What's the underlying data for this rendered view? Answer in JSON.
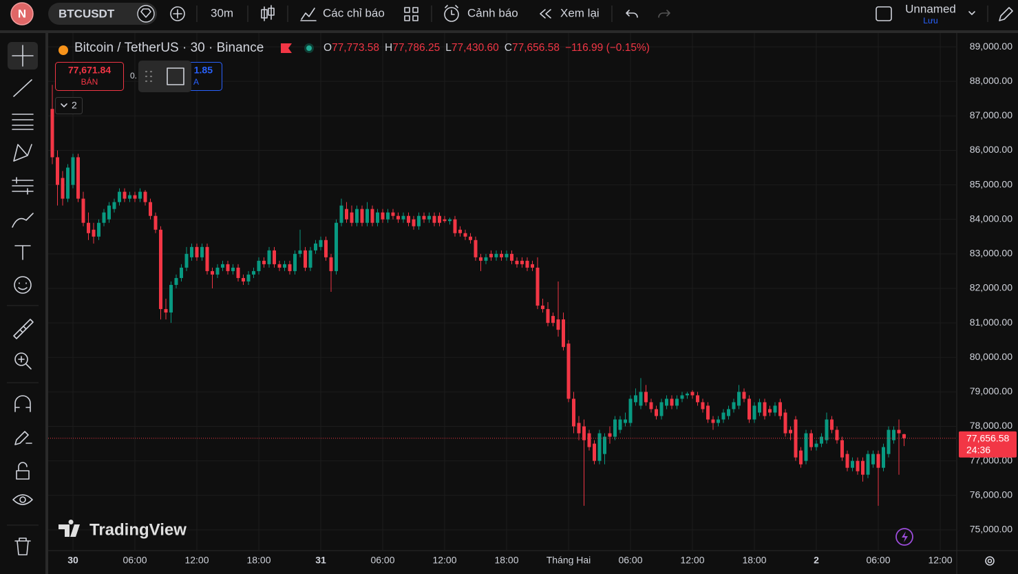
{
  "toolbar": {
    "avatar": "N",
    "symbol": "BTCUSDT",
    "interval": "30m",
    "indicators": "Các chỉ báo",
    "alerts": "Cảnh báo",
    "replay": "Xem lại",
    "layout_name": "Unnamed",
    "save": "Lưu"
  },
  "legend": {
    "title": "Bitcoin / TetherUS · 30 · Binance",
    "ohlc": [
      {
        "key": "O",
        "value": "77,773.58"
      },
      {
        "key": "H",
        "value": "77,786.25"
      },
      {
        "key": "L",
        "value": "77,430.60"
      },
      {
        "key": "C",
        "value": "77,656.58"
      }
    ],
    "change": "−116.99 (−0.15%)"
  },
  "trade": {
    "sell_price": "77,671.84",
    "sell_label": "BÁN",
    "spread": "0.",
    "buy_price": "1.85",
    "buy_label": "A",
    "indicators_badge": "2"
  },
  "watermark": "TradingView",
  "chart_data": {
    "type": "candlestick",
    "up_color": "#089981",
    "down_color": "#f23645",
    "grid": true,
    "ylim": [
      74400,
      89400
    ],
    "yticks": [
      {
        "value": 75000,
        "label": "75,000.00"
      },
      {
        "value": 76000,
        "label": "76,000.00"
      },
      {
        "value": 77000,
        "label": "77,000.00"
      },
      {
        "value": 78000,
        "label": "78,000.00"
      },
      {
        "value": 79000,
        "label": "79,000.00"
      },
      {
        "value": 80000,
        "label": "80,000.00"
      },
      {
        "value": 81000,
        "label": "81,000.00"
      },
      {
        "value": 82000,
        "label": "82,000.00"
      },
      {
        "value": 83000,
        "label": "83,000.00"
      },
      {
        "value": 84000,
        "label": "84,000.00"
      },
      {
        "value": 85000,
        "label": "85,000.00"
      },
      {
        "value": 86000,
        "label": "86,000.00"
      },
      {
        "value": 87000,
        "label": "87,000.00"
      },
      {
        "value": 88000,
        "label": "88,000.00"
      },
      {
        "value": 89000,
        "label": "89,000.00"
      }
    ],
    "last_price": {
      "value": 77656.58,
      "label": "77,656.58"
    },
    "countdown": "24:36",
    "categories": [
      null,
      null,
      null,
      null,
      "30",
      null,
      null,
      null,
      null,
      null,
      null,
      null,
      null,
      null,
      null,
      null,
      "06:00",
      null,
      null,
      null,
      null,
      null,
      null,
      null,
      null,
      null,
      null,
      null,
      "12:00",
      null,
      null,
      null,
      null,
      null,
      null,
      null,
      null,
      null,
      null,
      null,
      "18:00",
      null,
      null,
      null,
      null,
      null,
      null,
      null,
      null,
      null,
      null,
      null,
      "31",
      null,
      null,
      null,
      null,
      null,
      null,
      null,
      null,
      null,
      null,
      null,
      "06:00",
      null,
      null,
      null,
      null,
      null,
      null,
      null,
      null,
      null,
      null,
      null,
      "12:00",
      null,
      null,
      null,
      null,
      null,
      null,
      null,
      null,
      null,
      null,
      null,
      "18:00",
      null,
      null,
      null,
      null,
      null,
      null,
      null,
      null,
      null,
      null,
      null,
      "Tháng Hai",
      null,
      null,
      null,
      null,
      null,
      null,
      null,
      null,
      null,
      null,
      null,
      "06:00",
      null,
      null,
      null,
      null,
      null,
      null,
      null,
      null,
      null,
      null,
      null,
      "12:00",
      null,
      null,
      null,
      null,
      null,
      null,
      null,
      null,
      null,
      null,
      null,
      "18:00",
      null,
      null,
      null,
      null,
      null,
      null,
      null,
      null,
      null,
      null,
      null,
      "2",
      null,
      null,
      null,
      null,
      null,
      null,
      null,
      null,
      null,
      null,
      null,
      "06:00",
      null,
      null,
      null,
      null,
      null,
      null,
      null,
      null,
      null,
      null,
      null,
      "12:00",
      null
    ],
    "ohlc": [
      [
        87200,
        87900,
        85600,
        85800
      ],
      [
        85800,
        86000,
        84400,
        85000
      ],
      [
        85200,
        85400,
        84400,
        84600
      ],
      [
        84600,
        85600,
        84500,
        85500
      ],
      [
        85000,
        85900,
        84900,
        85800
      ],
      [
        85800,
        85900,
        84500,
        84600
      ],
      [
        84600,
        84800,
        83800,
        83900
      ],
      [
        83900,
        84200,
        83400,
        83600
      ],
      [
        83700,
        83900,
        83300,
        83500
      ],
      [
        83500,
        84000,
        83400,
        83900
      ],
      [
        83900,
        84300,
        83800,
        84200
      ],
      [
        84000,
        84500,
        83900,
        84400
      ],
      [
        84300,
        84600,
        84200,
        84500
      ],
      [
        84500,
        84900,
        84400,
        84800
      ],
      [
        84800,
        84900,
        84500,
        84600
      ],
      [
        84600,
        84800,
        84500,
        84700
      ],
      [
        84700,
        84800,
        84500,
        84600
      ],
      [
        84600,
        84900,
        84500,
        84800
      ],
      [
        84800,
        84850,
        84400,
        84500
      ],
      [
        84500,
        84600,
        84000,
        84100
      ],
      [
        84100,
        84200,
        83600,
        83700
      ],
      [
        83700,
        83800,
        81100,
        81400
      ],
      [
        81400,
        81700,
        81100,
        81300
      ],
      [
        81300,
        82200,
        81000,
        82100
      ],
      [
        82100,
        82400,
        82000,
        82300
      ],
      [
        82300,
        82700,
        82200,
        82600
      ],
      [
        82600,
        83200,
        82500,
        83000
      ],
      [
        82900,
        83300,
        82800,
        83200
      ],
      [
        83200,
        83300,
        82800,
        82900
      ],
      [
        82900,
        83300,
        82800,
        83200
      ],
      [
        83200,
        83300,
        82400,
        82500
      ],
      [
        82500,
        82600,
        82000,
        82400
      ],
      [
        82400,
        82700,
        82300,
        82600
      ],
      [
        82600,
        82800,
        82500,
        82700
      ],
      [
        82700,
        82800,
        82400,
        82500
      ],
      [
        82500,
        82700,
        82400,
        82600
      ],
      [
        82600,
        82700,
        82200,
        82300
      ],
      [
        82300,
        82400,
        82100,
        82200
      ],
      [
        82200,
        82500,
        82100,
        82400
      ],
      [
        82400,
        82600,
        82300,
        82500
      ],
      [
        82500,
        82900,
        82400,
        82800
      ],
      [
        82800,
        82900,
        82600,
        82700
      ],
      [
        82700,
        83200,
        82600,
        83100
      ],
      [
        83100,
        83200,
        82600,
        82700
      ],
      [
        82700,
        82800,
        82500,
        82600
      ],
      [
        82600,
        82800,
        82500,
        82700
      ],
      [
        82700,
        82800,
        82400,
        82500
      ],
      [
        82500,
        83100,
        82400,
        83000
      ],
      [
        83000,
        83700,
        82900,
        83100
      ],
      [
        83100,
        83200,
        82500,
        82600
      ],
      [
        82600,
        83200,
        82500,
        83100
      ],
      [
        83100,
        83400,
        83000,
        83300
      ],
      [
        83200,
        83500,
        83100,
        83400
      ],
      [
        83400,
        83500,
        82800,
        82900
      ],
      [
        82900,
        83000,
        81900,
        82500
      ],
      [
        82500,
        84000,
        82400,
        83900
      ],
      [
        83900,
        84600,
        83800,
        84400
      ],
      [
        84300,
        84500,
        83900,
        84000
      ],
      [
        84200,
        84400,
        83800,
        83900
      ],
      [
        83900,
        84400,
        83800,
        84300
      ],
      [
        84300,
        84400,
        83800,
        83900
      ],
      [
        83900,
        84500,
        83800,
        84300
      ],
      [
        84300,
        84400,
        83800,
        83900
      ],
      [
        83900,
        84300,
        83800,
        84200
      ],
      [
        84200,
        84300,
        83900,
        84000
      ],
      [
        84000,
        84300,
        83900,
        84200
      ],
      [
        84200,
        84300,
        84000,
        84100
      ],
      [
        84100,
        84200,
        83900,
        84000
      ],
      [
        84000,
        84200,
        83900,
        84100
      ],
      [
        84100,
        84200,
        83800,
        83900
      ],
      [
        84000,
        84100,
        83700,
        83800
      ],
      [
        83800,
        84200,
        83700,
        84100
      ],
      [
        84100,
        84200,
        83900,
        84000
      ],
      [
        84000,
        84200,
        83900,
        84100
      ],
      [
        84100,
        84200,
        83800,
        83900
      ],
      [
        84100,
        84200,
        83800,
        83900
      ],
      [
        84000,
        84100,
        83900,
        83950
      ],
      [
        83950,
        84050,
        83850,
        84000
      ],
      [
        84000,
        84100,
        83500,
        83600
      ],
      [
        83700,
        83800,
        83500,
        83600
      ],
      [
        83600,
        83700,
        83400,
        83500
      ],
      [
        83500,
        83600,
        83300,
        83400
      ],
      [
        83400,
        83500,
        82800,
        82900
      ],
      [
        82900,
        83000,
        82500,
        82800
      ],
      [
        82800,
        83000,
        82700,
        82900
      ],
      [
        83000,
        83100,
        82800,
        82900
      ],
      [
        82900,
        83100,
        82800,
        83000
      ],
      [
        83000,
        83100,
        82800,
        82900
      ],
      [
        82900,
        83100,
        82800,
        83000
      ],
      [
        83000,
        83100,
        82700,
        82800
      ],
      [
        82800,
        82900,
        82600,
        82700
      ],
      [
        82800,
        82900,
        82600,
        82700
      ],
      [
        82800,
        82900,
        82500,
        82600
      ],
      [
        82700,
        82800,
        82500,
        82600
      ],
      [
        82600,
        82900,
        81400,
        81500
      ],
      [
        81500,
        81700,
        81300,
        81400
      ],
      [
        81400,
        81600,
        80900,
        81000
      ],
      [
        81200,
        81300,
        80900,
        81000
      ],
      [
        81100,
        82200,
        80600,
        80800
      ],
      [
        81100,
        81300,
        80200,
        80300
      ],
      [
        80400,
        80500,
        78700,
        78800
      ],
      [
        78800,
        79000,
        77800,
        78000
      ],
      [
        78100,
        78300,
        77600,
        77800
      ],
      [
        78000,
        78200,
        75700,
        77600
      ],
      [
        77800,
        77900,
        77300,
        77400
      ],
      [
        77500,
        77600,
        76900,
        77000
      ],
      [
        77000,
        77900,
        76900,
        77800
      ],
      [
        77200,
        77800,
        76900,
        77700
      ],
      [
        77800,
        78000,
        77500,
        77700
      ],
      [
        77700,
        78300,
        77600,
        78200
      ],
      [
        77900,
        78300,
        77800,
        78200
      ],
      [
        78100,
        78400,
        78000,
        78200
      ],
      [
        78100,
        78900,
        78000,
        78800
      ],
      [
        78700,
        79100,
        78600,
        78900
      ],
      [
        78600,
        79400,
        78500,
        79000
      ],
      [
        79000,
        79200,
        78600,
        78700
      ],
      [
        78700,
        78800,
        78400,
        78500
      ],
      [
        78500,
        78600,
        78200,
        78300
      ],
      [
        78300,
        78800,
        78200,
        78700
      ],
      [
        78600,
        78900,
        78500,
        78800
      ],
      [
        78800,
        78900,
        78500,
        78600
      ],
      [
        78600,
        78900,
        78500,
        78800
      ],
      [
        78800,
        79000,
        78700,
        78900
      ],
      [
        78900,
        79000,
        78800,
        78950
      ],
      [
        79000,
        79050,
        78800,
        78900
      ],
      [
        78900,
        79000,
        78600,
        78700
      ],
      [
        78700,
        78800,
        78400,
        78500
      ],
      [
        78600,
        78700,
        78100,
        78200
      ],
      [
        78200,
        78300,
        77900,
        78100
      ],
      [
        78100,
        78300,
        78000,
        78200
      ],
      [
        78200,
        78500,
        78100,
        78400
      ],
      [
        78300,
        78600,
        78200,
        78500
      ],
      [
        78500,
        78800,
        78400,
        78700
      ],
      [
        78600,
        79200,
        78500,
        79000
      ],
      [
        79000,
        79100,
        78700,
        78800
      ],
      [
        78800,
        78900,
        78100,
        78200
      ],
      [
        78200,
        78700,
        78100,
        78600
      ],
      [
        78400,
        78800,
        78300,
        78700
      ],
      [
        78700,
        78800,
        78200,
        78300
      ],
      [
        78500,
        78600,
        78300,
        78400
      ],
      [
        78400,
        78700,
        78300,
        78600
      ],
      [
        78700,
        78800,
        78200,
        78300
      ],
      [
        78400,
        78500,
        77700,
        77800
      ],
      [
        77900,
        78000,
        77600,
        77800
      ],
      [
        78200,
        78300,
        77000,
        77100
      ],
      [
        77300,
        77400,
        76800,
        76900
      ],
      [
        77000,
        77900,
        76900,
        77800
      ],
      [
        77800,
        77900,
        77300,
        77400
      ],
      [
        77400,
        77600,
        77300,
        77500
      ],
      [
        77500,
        77800,
        77400,
        77700
      ],
      [
        77600,
        78400,
        77500,
        78200
      ],
      [
        78200,
        78300,
        77800,
        77900
      ],
      [
        77900,
        78000,
        77500,
        77600
      ],
      [
        77600,
        77700,
        77000,
        77100
      ],
      [
        77200,
        77300,
        76700,
        76800
      ],
      [
        76800,
        77100,
        76700,
        77000
      ],
      [
        77000,
        77100,
        76600,
        76700
      ],
      [
        77000,
        77100,
        76400,
        76600
      ],
      [
        76600,
        77300,
        76500,
        77200
      ],
      [
        76900,
        77300,
        76800,
        77200
      ],
      [
        77200,
        77300,
        75700,
        76800
      ],
      [
        76800,
        77500,
        76700,
        77400
      ],
      [
        77200,
        78000,
        77100,
        77900
      ],
      [
        77600,
        78000,
        77500,
        77900
      ],
      [
        77900,
        78200,
        76600,
        77800
      ],
      [
        77773.58,
        77786.25,
        77430.6,
        77656.58
      ],
      null,
      null,
      null,
      null,
      null,
      null,
      null,
      null
    ]
  }
}
